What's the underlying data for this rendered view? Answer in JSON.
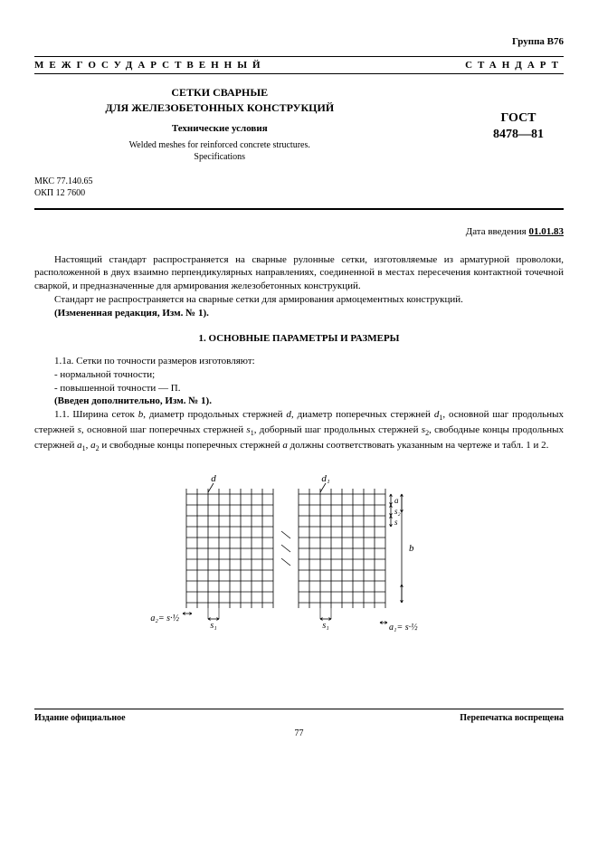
{
  "group_label": "Группа В76",
  "banner_left": "МЕЖГОСУДАРСТВЕННЫЙ",
  "banner_right": "СТАНДАРТ",
  "title_line1": "СЕТКИ СВАРНЫЕ",
  "title_line2": "ДЛЯ ЖЕЛЕЗОБЕТОННЫХ КОНСТРУКЦИЙ",
  "title_sub": "Технические условия",
  "title_en_line1": "Welded meshes for reinforced concrete structures.",
  "title_en_line2": "Specifications",
  "code_mks": "МКС 77.140.65",
  "code_okp": "ОКП 12 7600",
  "gost_label": "ГОСТ",
  "gost_number": "8478—81",
  "intro_date_label": "Дата введения ",
  "intro_date_value": "01.01.83",
  "para1": "Настоящий стандарт распространяется на сварные рулонные сетки, изготовляемые из арматурной проволоки, расположенной в двух взаимно перпендикулярных направлениях, соединенной в местах пересечения контактной точечной сваркой, и предназначенные для армирования железобетонных конструкций.",
  "para2": "Стандарт не распространяется на сварные сетки для армирования армоцементных конструкций.",
  "para3": "(Измененная редакция, Изм. № 1).",
  "section_head": "1. ОСНОВНЫЕ ПАРАМЕТРЫ И РАЗМЕРЫ",
  "p1_1a": "1.1а. Сетки по точности размеров изготовляют:",
  "p1_1a_b1": "- нормальной точности;",
  "p1_1a_b2": "- повышенной точности — П.",
  "p1_1a_note": "(Введен дополнительно, Изм. № 1).",
  "p1_1": "1.1. Ширина сеток b, диаметр продольных стержней d, диаметр поперечных стержней d₁, основной шаг продольных стержней s, основной шаг поперечных стержней s₁, доборный шаг продольных стержней s₂, свободные концы продольных стержней a₁, a₂ и свободные концы поперечных стержней a должны соответствовать указанным на чертеже и табл. 1 и 2.",
  "footer_left": "Издание официальное",
  "footer_right": "Перепечатка воспрещена",
  "page_number": "77",
  "diagram": {
    "label_d": "d",
    "label_d1": "d₁",
    "label_s": "s",
    "label_s1": "s₁",
    "label_s2": "s₂",
    "label_a": "a",
    "label_a1": "a₁= s·½",
    "label_a2": "a₂= s·½",
    "label_b": "b",
    "line_color": "#000000",
    "grid_rows": 10,
    "grid_cols": 8,
    "cell_size": 12
  }
}
